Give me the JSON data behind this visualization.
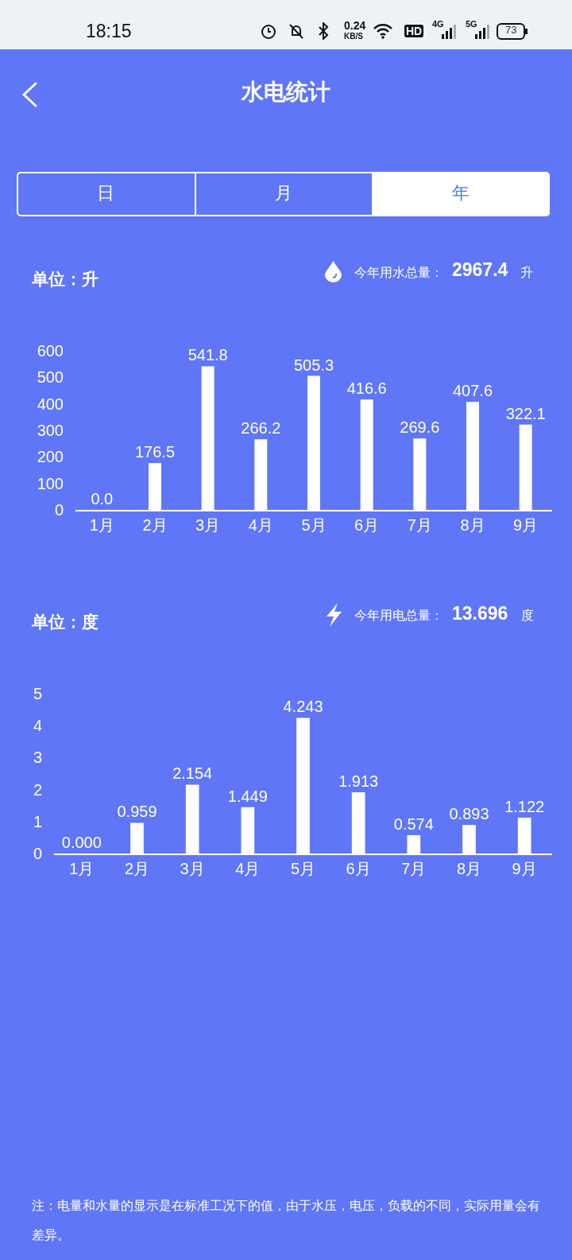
{
  "chart_data": [
    {
      "type": "bar",
      "categories": [
        "1月",
        "2月",
        "3月",
        "4月",
        "5月",
        "6月",
        "7月",
        "8月",
        "9月"
      ],
      "series": [
        {
          "color": "#ffffff",
          "values": [
            0,
            176.5,
            541.8,
            266.2,
            505.3,
            416.6,
            269.6,
            407.6,
            322.1
          ],
          "value_labels": [
            "0.0",
            "176.5",
            "541.8",
            "266.2",
            "505.3",
            "416.6",
            "269.6",
            "407.6",
            "322.1"
          ]
        }
      ],
      "ylim": [
        0,
        600
      ],
      "yticks": [
        0,
        100,
        200,
        300,
        400,
        500,
        600
      ],
      "grid": false,
      "annotations": [
        "18:15",
        "0.24",
        "KB/S",
        "HD",
        "4G",
        "5G",
        "73",
        "水电统计",
        "日",
        "月",
        "年",
        "单位：升",
        "今年用水总量：",
        "2967.4",
        "升"
      ]
    },
    {
      "type": "bar",
      "categories": [
        "1月",
        "2月",
        "3月",
        "4月",
        "5月",
        "6月",
        "7月",
        "8月",
        "9月"
      ],
      "series": [
        {
          "color": "#ffffff",
          "values": [
            0,
            0.959,
            2.154,
            1.449,
            4.243,
            1.913,
            0.574,
            0.893,
            1.122
          ],
          "value_labels": [
            "0.000",
            "0.959",
            "2.154",
            "1.449",
            "4.243",
            "1.913",
            "0.574",
            "0.893",
            "1.122"
          ]
        }
      ],
      "ylim": [
        0,
        5
      ],
      "yticks": [
        0,
        1,
        2,
        3,
        4,
        5
      ],
      "grid": false,
      "annotations": [
        "单位：度",
        "今年用电总量：",
        "13.696",
        "度",
        "注：电量和水量的显示是在标准工况下的值，由于水压，电压，负载的不同，实际用量会有差异。"
      ]
    }
  ]
}
